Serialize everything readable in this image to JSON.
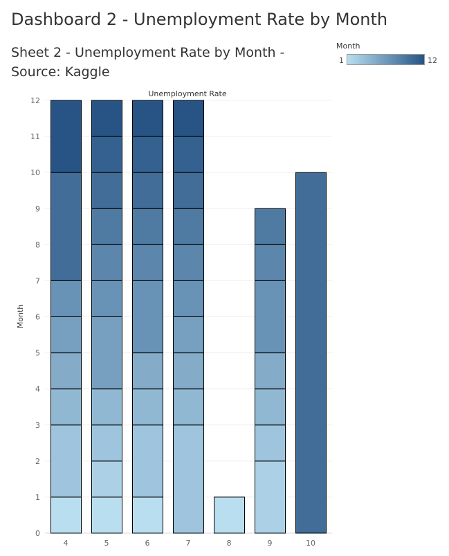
{
  "dashboard_title": "Dashboard 2 - Unemployment Rate by Month",
  "sheet_title": "Sheet 2 - Unemployment Rate by Month - Source: Kaggle",
  "legend": {
    "title": "Month",
    "min_label": "1",
    "max_label": "12",
    "color_low": "#b9def0",
    "color_high": "#275485"
  },
  "chart_data": {
    "type": "bar",
    "stacked": true,
    "title": "Unemployment Rate",
    "xlabel": "",
    "ylabel": "Month",
    "ylim": [
      0,
      12
    ],
    "y_ticks": [
      0,
      1,
      2,
      3,
      4,
      5,
      6,
      7,
      8,
      9,
      10,
      11,
      12
    ],
    "categories": [
      "4",
      "5",
      "6",
      "7",
      "8",
      "9",
      "10"
    ],
    "color_by": "Month",
    "color_range": [
      1,
      12
    ],
    "stacks": [
      {
        "category": "4",
        "segments": [
          [
            0,
            1
          ],
          [
            1,
            3
          ],
          [
            3,
            4
          ],
          [
            4,
            5
          ],
          [
            5,
            6
          ],
          [
            6,
            7
          ],
          [
            7,
            10
          ],
          [
            10,
            12
          ]
        ]
      },
      {
        "category": "5",
        "segments": [
          [
            0,
            1
          ],
          [
            1,
            2
          ],
          [
            2,
            3
          ],
          [
            3,
            4
          ],
          [
            4,
            6
          ],
          [
            6,
            7
          ],
          [
            7,
            8
          ],
          [
            8,
            9
          ],
          [
            9,
            10
          ],
          [
            10,
            11
          ],
          [
            11,
            12
          ]
        ]
      },
      {
        "category": "6",
        "segments": [
          [
            0,
            1
          ],
          [
            1,
            3
          ],
          [
            3,
            4
          ],
          [
            4,
            5
          ],
          [
            5,
            7
          ],
          [
            7,
            8
          ],
          [
            8,
            9
          ],
          [
            9,
            10
          ],
          [
            10,
            11
          ],
          [
            11,
            12
          ]
        ]
      },
      {
        "category": "7",
        "segments": [
          [
            0,
            3
          ],
          [
            3,
            4
          ],
          [
            4,
            5
          ],
          [
            5,
            6
          ],
          [
            6,
            7
          ],
          [
            7,
            8
          ],
          [
            8,
            9
          ],
          [
            9,
            10
          ],
          [
            10,
            11
          ],
          [
            11,
            12
          ]
        ]
      },
      {
        "category": "8",
        "segments": [
          [
            0,
            1
          ]
        ]
      },
      {
        "category": "9",
        "segments": [
          [
            0,
            2
          ],
          [
            2,
            3
          ],
          [
            3,
            4
          ],
          [
            4,
            5
          ],
          [
            5,
            7
          ],
          [
            7,
            8
          ],
          [
            8,
            9
          ]
        ]
      },
      {
        "category": "10",
        "segments": [
          [
            0,
            10
          ]
        ]
      }
    ]
  }
}
